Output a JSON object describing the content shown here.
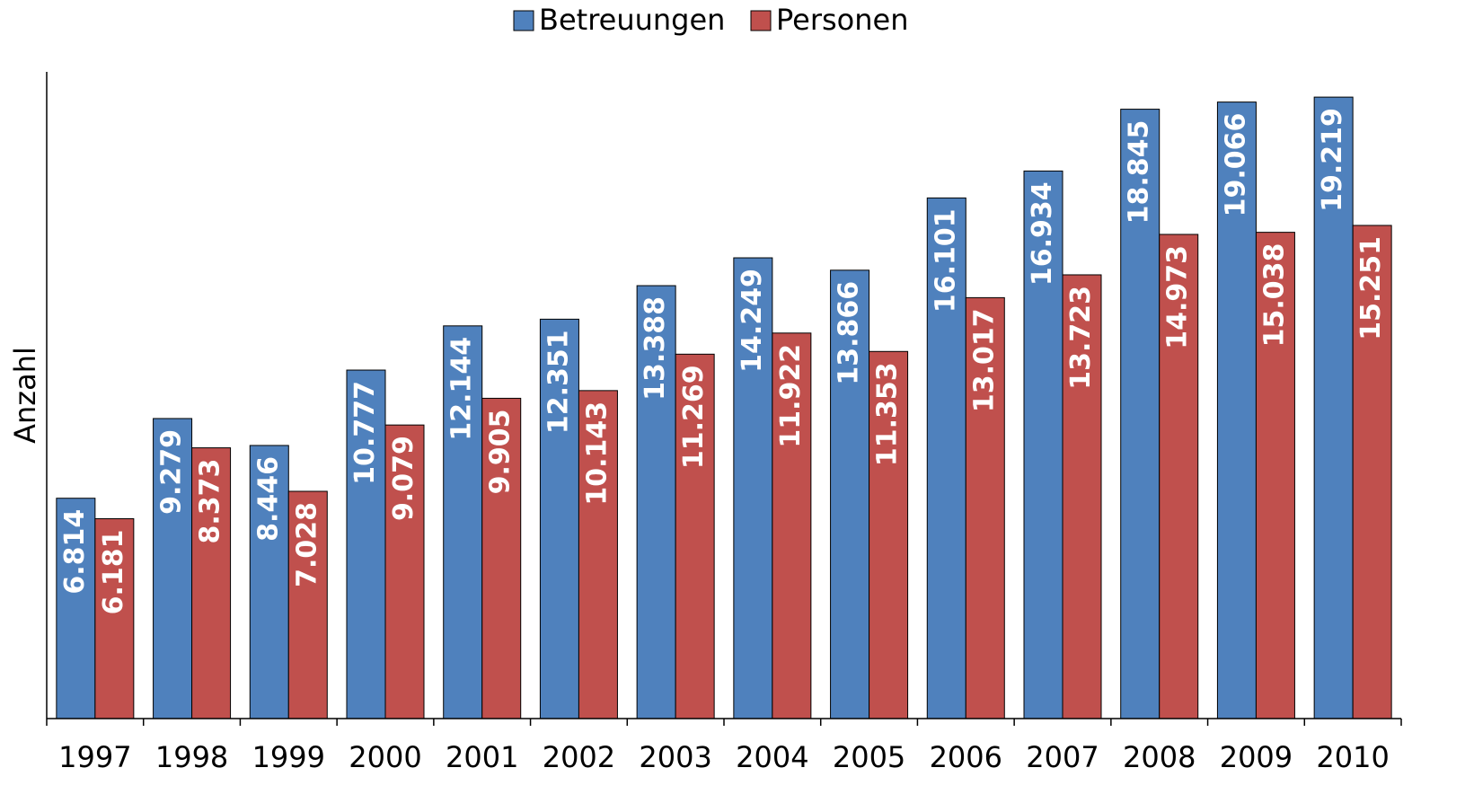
{
  "chart_data": {
    "type": "bar",
    "y_label": "Anzahl",
    "categories": [
      "1997",
      "1998",
      "1999",
      "2000",
      "2001",
      "2002",
      "2003",
      "2004",
      "2005",
      "2006",
      "2007",
      "2008",
      "2009",
      "2010"
    ],
    "series": [
      {
        "name": "Betreuungen",
        "color": "#4f81bd",
        "values": [
          6814,
          9279,
          8446,
          10777,
          12144,
          12351,
          13388,
          14249,
          13866,
          16101,
          16934,
          18845,
          19066,
          19219
        ],
        "value_labels": [
          "6.814",
          "9.279",
          "8.446",
          "10.777",
          "12.144",
          "12.351",
          "13.388",
          "14.249",
          "13.866",
          "16.101",
          "16.934",
          "18.845",
          "19.066",
          "19.219"
        ]
      },
      {
        "name": "Personen",
        "color": "#c0504d",
        "values": [
          6181,
          8373,
          7028,
          9079,
          9905,
          10143,
          11269,
          11922,
          11353,
          13017,
          13723,
          14973,
          15038,
          15251
        ],
        "value_labels": [
          "6.181",
          "8.373",
          "7.028",
          "9.079",
          "9.905",
          "10.143",
          "11.269",
          "11.922",
          "11.353",
          "13.017",
          "13.723",
          "14.973",
          "15.038",
          "15.251"
        ]
      }
    ],
    "ylim": [
      0,
      20000
    ],
    "legend": "top"
  }
}
